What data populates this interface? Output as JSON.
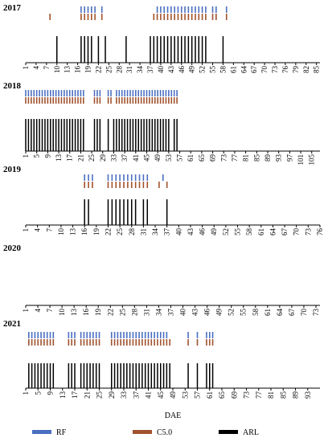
{
  "chart_data": {
    "type": "event-strip",
    "xlabel": "DAE",
    "legend": [
      {
        "name": "RF",
        "color": "#4a6fc0"
      },
      {
        "name": "C5.0",
        "color": "#a0522d"
      },
      {
        "name": "ARL",
        "color": "#000000"
      }
    ],
    "panels": [
      {
        "year": "2017",
        "ticks": [
          "1",
          "4",
          "7",
          "10",
          "13",
          "16",
          "19",
          "22",
          "25",
          "28",
          "31",
          "34",
          "37",
          "40",
          "43",
          "46",
          "49",
          "52",
          "55",
          "58",
          "61",
          "64",
          "67",
          "70",
          "73",
          "76",
          "79",
          "82",
          "85"
        ],
        "xmax": 86,
        "rf": [
          17,
          18,
          19,
          20,
          21,
          23,
          39,
          40,
          41,
          42,
          43,
          44,
          45,
          46,
          47,
          48,
          49,
          50,
          51,
          52,
          53,
          55,
          56,
          59
        ],
        "c50": [
          8,
          17,
          18,
          19,
          20,
          21,
          23,
          38,
          39,
          40,
          41,
          42,
          43,
          44,
          45,
          46,
          47,
          48,
          49,
          50,
          51,
          52,
          53,
          55,
          56,
          59
        ],
        "arl": [
          10,
          17,
          18,
          19,
          20,
          22,
          24,
          30,
          37,
          38,
          39,
          40,
          41,
          42,
          43,
          44,
          45,
          46,
          47,
          48,
          49,
          50,
          51,
          52,
          53,
          58
        ]
      },
      {
        "year": "2018",
        "ticks": [
          "1",
          "5",
          "9",
          "13",
          "17",
          "21",
          "25",
          "29",
          "33",
          "37",
          "41",
          "45",
          "49",
          "53",
          "57",
          "61",
          "65",
          "69",
          "73",
          "77",
          "81",
          "85",
          "89",
          "93",
          "97",
          "101",
          "105"
        ],
        "xmax": 108,
        "rf": [
          1,
          2,
          3,
          4,
          5,
          6,
          7,
          8,
          9,
          10,
          11,
          12,
          13,
          14,
          15,
          16,
          17,
          18,
          19,
          20,
          21,
          22,
          26,
          27,
          28,
          31,
          32,
          34,
          35,
          36,
          37,
          38,
          39,
          40,
          41,
          42,
          43,
          44,
          45,
          46,
          47,
          48,
          49,
          50,
          51,
          52,
          53,
          54,
          55,
          56
        ],
        "c50": [
          1,
          2,
          3,
          4,
          5,
          6,
          7,
          8,
          9,
          10,
          11,
          12,
          13,
          14,
          15,
          16,
          17,
          18,
          19,
          20,
          21,
          22,
          26,
          27,
          28,
          31,
          32,
          34,
          35,
          36,
          37,
          38,
          39,
          40,
          41,
          42,
          43,
          44,
          45,
          46,
          47,
          48,
          49,
          50,
          51,
          52,
          53,
          54,
          55,
          56
        ],
        "arl": [
          1,
          2,
          3,
          4,
          5,
          6,
          7,
          8,
          9,
          10,
          11,
          12,
          13,
          14,
          15,
          16,
          17,
          18,
          19,
          20,
          21,
          22,
          26,
          27,
          28,
          31,
          33,
          34,
          35,
          36,
          37,
          38,
          39,
          40,
          41,
          42,
          43,
          44,
          45,
          46,
          47,
          48,
          49,
          50,
          51,
          52,
          53,
          55,
          56
        ]
      },
      {
        "year": "2019",
        "ticks": [
          "1",
          "4",
          "7",
          "10",
          "13",
          "16",
          "19",
          "22",
          "25",
          "28",
          "31",
          "34",
          "37",
          "40",
          "43",
          "46",
          "49",
          "52",
          "55",
          "58",
          "61",
          "64",
          "67",
          "70",
          "73",
          "76"
        ],
        "xmax": 76,
        "rf": [
          16,
          17,
          18,
          22,
          23,
          24,
          25,
          26,
          27,
          28,
          29,
          30,
          31,
          32,
          36
        ],
        "c50": [
          16,
          17,
          18,
          22,
          23,
          24,
          25,
          26,
          27,
          28,
          29,
          30,
          31,
          32,
          35,
          37
        ],
        "arl": [
          16,
          17,
          22,
          23,
          24,
          25,
          26,
          27,
          28,
          29,
          31,
          32,
          37
        ]
      },
      {
        "year": "2020",
        "ticks": [
          "1",
          "4",
          "7",
          "10",
          "13",
          "16",
          "19",
          "22",
          "25",
          "28",
          "31",
          "34",
          "37",
          "40",
          "43",
          "46",
          "49",
          "52",
          "55",
          "58",
          "61",
          "64",
          "67",
          "70",
          "73"
        ],
        "xmax": 74,
        "rf": [],
        "c50": [],
        "arl": []
      },
      {
        "year": "2021",
        "ticks": [
          "1",
          "5",
          "9",
          "13",
          "17",
          "21",
          "25",
          "29",
          "33",
          "37",
          "41",
          "45",
          "49",
          "53",
          "57",
          "61",
          "65",
          "69",
          "73",
          "77",
          "81",
          "85",
          "89",
          "93"
        ],
        "xmax": 97,
        "rf": [
          2,
          3,
          4,
          5,
          6,
          7,
          8,
          9,
          10,
          15,
          16,
          17,
          19,
          20,
          21,
          22,
          23,
          24,
          25,
          29,
          30,
          31,
          32,
          33,
          34,
          35,
          36,
          37,
          38,
          39,
          40,
          41,
          42,
          43,
          44,
          45,
          46,
          47,
          54,
          57,
          60,
          61,
          62
        ],
        "c50": [
          2,
          3,
          4,
          5,
          6,
          7,
          8,
          9,
          10,
          15,
          16,
          17,
          19,
          20,
          21,
          22,
          23,
          24,
          25,
          29,
          30,
          31,
          32,
          33,
          34,
          35,
          36,
          37,
          38,
          39,
          40,
          41,
          42,
          43,
          44,
          45,
          46,
          47,
          48,
          54,
          57,
          60,
          61,
          62
        ],
        "arl": [
          2,
          3,
          4,
          5,
          6,
          7,
          8,
          9,
          10,
          15,
          16,
          17,
          19,
          20,
          21,
          22,
          23,
          24,
          25,
          29,
          30,
          31,
          32,
          33,
          34,
          35,
          36,
          37,
          38,
          39,
          40,
          41,
          42,
          43,
          44,
          45,
          46,
          47,
          48,
          54,
          57,
          60,
          61,
          62
        ]
      }
    ]
  }
}
